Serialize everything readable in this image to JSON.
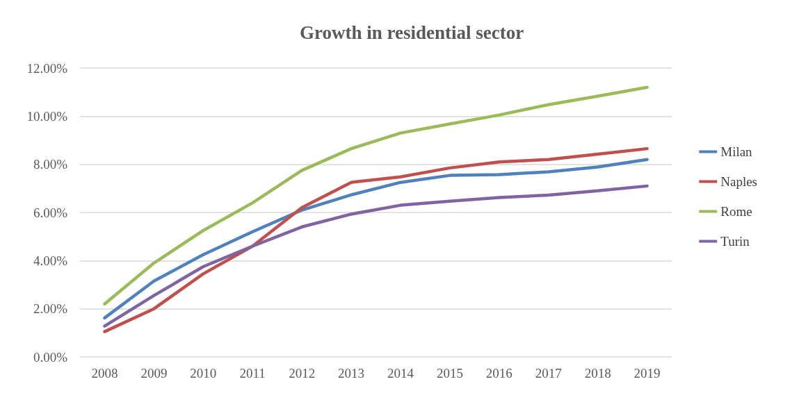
{
  "chart_data": {
    "type": "line",
    "title": "Growth in residential sector",
    "categories": [
      "2008",
      "2009",
      "2010",
      "2011",
      "2012",
      "2013",
      "2014",
      "2015",
      "2016",
      "2017",
      "2018",
      "2019"
    ],
    "series": [
      {
        "name": "Milan",
        "color": "#4f81bd",
        "values": [
          1.62,
          3.15,
          4.25,
          5.2,
          6.1,
          6.73,
          7.25,
          7.54,
          7.57,
          7.69,
          7.89,
          8.2
        ]
      },
      {
        "name": "Naples",
        "color": "#c0504d",
        "values": [
          1.05,
          2.0,
          3.45,
          4.6,
          6.2,
          7.25,
          7.48,
          7.85,
          8.1,
          8.2,
          8.42,
          8.65
        ]
      },
      {
        "name": "Rome",
        "color": "#9bbb59",
        "values": [
          2.2,
          3.9,
          5.25,
          6.4,
          7.75,
          8.65,
          9.3,
          9.68,
          10.05,
          10.48,
          10.83,
          11.2
        ]
      },
      {
        "name": "Turin",
        "color": "#8064a2",
        "values": [
          1.28,
          2.55,
          3.75,
          4.6,
          5.4,
          5.93,
          6.3,
          6.47,
          6.62,
          6.72,
          6.9,
          7.1
        ]
      }
    ],
    "ylim": [
      0,
      12
    ],
    "yticks": [
      {
        "value": 0,
        "label": "0.00%"
      },
      {
        "value": 2,
        "label": "2.00%"
      },
      {
        "value": 4,
        "label": "4.00%"
      },
      {
        "value": 6,
        "label": "6.00%"
      },
      {
        "value": 8,
        "label": "8.00%"
      },
      {
        "value": 10,
        "label": "10.00%"
      },
      {
        "value": 12,
        "label": "12.00%"
      }
    ],
    "grid": "y",
    "legend": "right",
    "marker": "none",
    "line_style": "solid"
  }
}
